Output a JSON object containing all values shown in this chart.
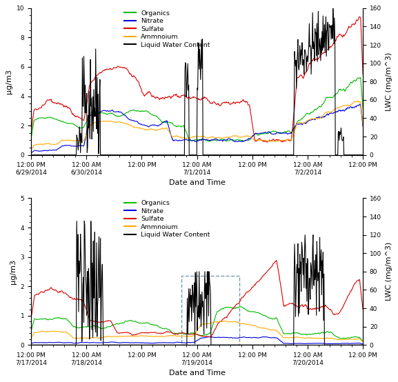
{
  "plot1": {
    "ylim_left": [
      0,
      10
    ],
    "ylim_right": [
      0,
      160
    ],
    "yticks_left": [
      0,
      2,
      4,
      6,
      8,
      10
    ],
    "yticks_right": [
      0,
      20,
      40,
      60,
      80,
      100,
      120,
      140,
      160
    ],
    "xlabel": "Date and Time",
    "ylabel_left": "μg/m3",
    "ylabel_right": "LWC (mg/m^³)",
    "xtick_labels": [
      "12:00 PM\n6/29/2014",
      "12:00 AM\n6/30/2014",
      "12:00 PM",
      "12:00 AM\n7/1/2014",
      "12:00 PM",
      "12:00 AM\n7/2/2014",
      "12:00 PM"
    ],
    "n_points": 700
  },
  "plot2": {
    "ylim_left": [
      0,
      5
    ],
    "ylim_right": [
      0,
      160
    ],
    "yticks_left": [
      0,
      1,
      2,
      3,
      4,
      5
    ],
    "yticks_right": [
      0,
      20,
      40,
      60,
      80,
      100,
      120,
      140,
      160
    ],
    "xlabel": "Date and Time",
    "ylabel_left": "μg/m3",
    "ylabel_right": "LWC (mg/m^³)",
    "xtick_labels": [
      "12:00 PM\n7/17/2014",
      "12:00 AM\n7/18/2014",
      "12:00 PM",
      "12:00 AM\n7/19/2014",
      "12:00 PM",
      "12:00 AM\n7/20/2014",
      "12:00 PM"
    ],
    "n_points": 700
  },
  "colors": {
    "organics": "#00bb00",
    "nitrate": "#0000dd",
    "sulfate": "#dd0000",
    "ammonium": "#ffaa00",
    "lwc": "#000000"
  },
  "legend_labels": [
    "Organics",
    "Nitrate",
    "Sulfate",
    "Ammnoium",
    "Liquid Water Content"
  ],
  "fig_facecolor": "#ffffff",
  "linewidth": 0.8
}
